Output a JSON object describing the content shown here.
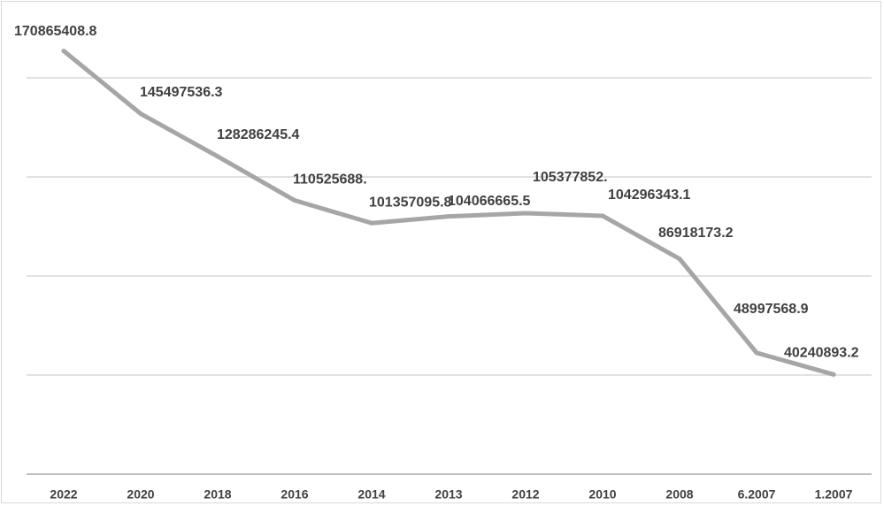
{
  "chart_data": {
    "type": "line",
    "title": "",
    "xlabel": "",
    "ylabel": "",
    "grid": true,
    "legend": "none",
    "categories": [
      "2022",
      "2020",
      "2018",
      "2016",
      "2014",
      "2013",
      "2012",
      "2010",
      "2008",
      "6.2007",
      "1.2007"
    ],
    "series": [
      {
        "values": [
          170865408.8,
          145497536.3,
          128286245.4,
          110525688,
          101357095.8,
          104066665.5,
          105377852,
          104296343.1,
          86918173.2,
          48997568.9,
          40240893.2
        ],
        "labels": [
          "170865408.8",
          "145497536.3",
          "128286245.4",
          "110525688.",
          "101357095.8",
          "104066665.5",
          "105377852.",
          "104296343.1",
          "86918173.2",
          "48997568.9",
          "40240893.2"
        ]
      }
    ],
    "ylim": [
      0,
      180000000
    ],
    "colors": {
      "series": "#a6a6a6",
      "grid": "#d9d9d9",
      "text": "#404040"
    }
  }
}
